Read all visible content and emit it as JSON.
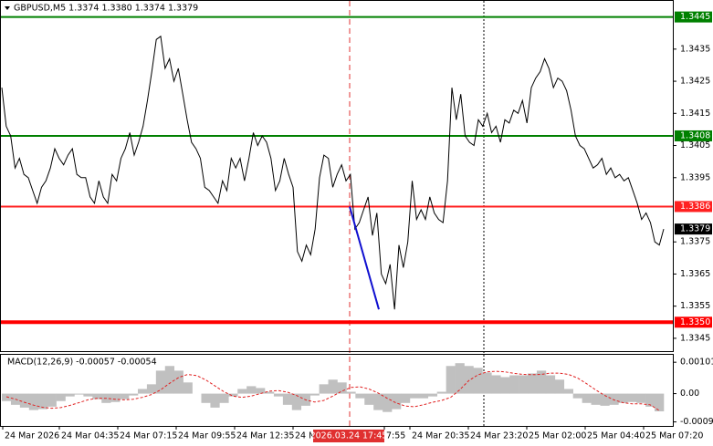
{
  "chart_data": [
    {
      "type": "line",
      "title": "GBPUSD,M5  1.3374 1.3380 1.3374 1.3379",
      "color": "#000000",
      "values": [
        1.3423,
        1.3411,
        1.3408,
        1.3398,
        1.3401,
        1.3396,
        1.3395,
        1.3391,
        1.3387,
        1.3392,
        1.3394,
        1.3398,
        1.3404,
        1.3401,
        1.3399,
        1.3402,
        1.3404,
        1.3396,
        1.3395,
        1.3395,
        1.3389,
        1.3387,
        1.3394,
        1.3389,
        1.3387,
        1.3396,
        1.3394,
        1.3401,
        1.3404,
        1.3409,
        1.3402,
        1.3406,
        1.3411,
        1.3419,
        1.3428,
        1.3438,
        1.3439,
        1.3429,
        1.3432,
        1.3425,
        1.3429,
        1.3421,
        1.3413,
        1.3406,
        1.3404,
        1.3401,
        1.3392,
        1.3391,
        1.3389,
        1.3387,
        1.3394,
        1.3391,
        1.3401,
        1.3398,
        1.3401,
        1.3394,
        1.3401,
        1.3409,
        1.3405,
        1.3408,
        1.3406,
        1.3401,
        1.3391,
        1.3394,
        1.3401,
        1.3396,
        1.3392,
        1.3372,
        1.3369,
        1.3374,
        1.3371,
        1.3379,
        1.3395,
        1.3402,
        1.3401,
        1.3392,
        1.3396,
        1.3399,
        1.3394,
        1.3396,
        1.3379,
        1.3381,
        1.3385,
        1.3389,
        1.3377,
        1.3384,
        1.3365,
        1.3362,
        1.3368,
        1.3354,
        1.3374,
        1.3367,
        1.3375,
        1.3394,
        1.3382,
        1.3385,
        1.3382,
        1.3389,
        1.3384,
        1.3382,
        1.3381,
        1.3394,
        1.3423,
        1.3413,
        1.3421,
        1.3408,
        1.3406,
        1.3405,
        1.3413,
        1.3411,
        1.3415,
        1.3409,
        1.3411,
        1.3406,
        1.3413,
        1.3412,
        1.3416,
        1.3415,
        1.3419,
        1.3412,
        1.3423,
        1.3426,
        1.3428,
        1.3432,
        1.3429,
        1.3423,
        1.3426,
        1.3425,
        1.3422,
        1.3416,
        1.3408,
        1.3405,
        1.3404,
        1.3401,
        1.3398,
        1.3399,
        1.3401,
        1.3396,
        1.3398,
        1.3395,
        1.3396,
        1.3394,
        1.3395,
        1.3391,
        1.3387,
        1.3382,
        1.3384,
        1.3381,
        1.3375,
        1.3374,
        1.3379
      ],
      "ylim": [
        1.3341,
        1.345
      ],
      "yticks": [
        1.3435,
        1.3425,
        1.3415,
        1.3405,
        1.3395,
        1.3375,
        1.3365,
        1.3355,
        1.3345
      ],
      "levels": [
        {
          "value": 1.3445,
          "color": "#008000"
        },
        {
          "value": 1.3408,
          "color": "#008000"
        },
        {
          "value": 1.3386,
          "color": "#ff2020"
        },
        {
          "value": {
            "value": 1.335,
            "label": "1.3350"
          },
          "color": "#ff0000"
        }
      ],
      "current": {
        "value": 1.3379,
        "color": "#000000"
      },
      "trendline": {
        "values": [
          1.3386,
          1.3354
        ],
        "color": "#1010d0"
      },
      "x_labels": [
        "24 Mar 2026",
        "24 Mar 04:35",
        "24 Mar 07:15",
        "24 Mar 09:55",
        "24 Mar 12:35",
        "24 M",
        "7:55",
        "24 Mar 20:35",
        "24 Mar 23:20",
        "25 Mar 02:00",
        "25 Mar 04:40",
        "25 Mar 07:20"
      ],
      "crosshair_label": "2026.03.24 17:45"
    },
    {
      "type": "macd",
      "title": "MACD(12,26,9) -0.00057 -0.00054",
      "histogram": {
        "color": "#c0c0c0",
        "values": [
          -0.00024,
          -0.00036,
          -0.00045,
          -0.00053,
          -0.0005,
          -0.00042,
          -0.00024,
          -9e-05,
          -3e-05,
          -9e-05,
          -0.00018,
          -0.0003,
          -0.00027,
          -0.00018,
          -6e-05,
          0.00015,
          0.0003,
          0.00074,
          0.00089,
          0.00074,
          0.00036,
          0,
          -0.0003,
          -0.00045,
          -0.0003,
          -9e-05,
          0.00015,
          0.00024,
          0.00018,
          6e-05,
          -9e-05,
          -0.00036,
          -0.00053,
          -0.00039,
          -6e-05,
          0.0003,
          0.00045,
          0.00036,
          6e-05,
          -0.00015,
          -0.00036,
          -0.00053,
          -0.00059,
          -0.0005,
          -0.0003,
          -0.00015,
          -0.00015,
          -9e-05,
          6e-05,
          0.00089,
          0.00098,
          0.00089,
          0.00083,
          0.00068,
          0.00059,
          0.00053,
          0.00059,
          0.00059,
          0.00065,
          0.00074,
          0.00059,
          0.00045,
          0.00015,
          -0.00015,
          -0.0003,
          -0.00036,
          -0.00039,
          -0.00036,
          -0.0003,
          -0.00027,
          -0.0003,
          -0.00042,
          -0.00057
        ]
      },
      "signal": {
        "color": "#e02020",
        "values": [
          -0.0001,
          -0.00018,
          -0.00028,
          -0.00037,
          -0.00044,
          -0.00047,
          -0.00045,
          -0.00038,
          -0.00029,
          -0.0002,
          -0.00015,
          -0.00015,
          -0.00018,
          -0.0002,
          -0.00018,
          -0.00012,
          -3e-05,
          0.00012,
          0.00033,
          0.00052,
          0.00062,
          0.00058,
          0.00044,
          0.00025,
          6e-05,
          -8e-05,
          -0.00012,
          -8e-05,
          0,
          8e-05,
          0.0001,
          5e-05,
          -6e-05,
          -0.0002,
          -0.00027,
          -0.00022,
          -8e-05,
          8e-05,
          0.0002,
          0.00022,
          0.00015,
          2e-05,
          -0.00015,
          -0.0003,
          -0.0004,
          -0.00042,
          -0.00036,
          -0.00028,
          -0.00022,
          -0.00012,
          0.00012,
          0.00042,
          0.0006,
          0.0007,
          0.00072,
          0.0007,
          0.00065,
          0.00062,
          0.00061,
          0.00062,
          0.00066,
          0.00066,
          0.00062,
          0.0005,
          0.00032,
          0.00012,
          -6e-05,
          -0.0002,
          -0.00029,
          -0.00033,
          -0.00033,
          -0.00036,
          -0.00054
        ]
      },
      "ylim": [
        -0.00104,
        0.00125
      ],
      "yticks": [
        0.00101,
        {
          "value": 0,
          "label": "0.00"
        },
        -0.00091
      ]
    }
  ]
}
